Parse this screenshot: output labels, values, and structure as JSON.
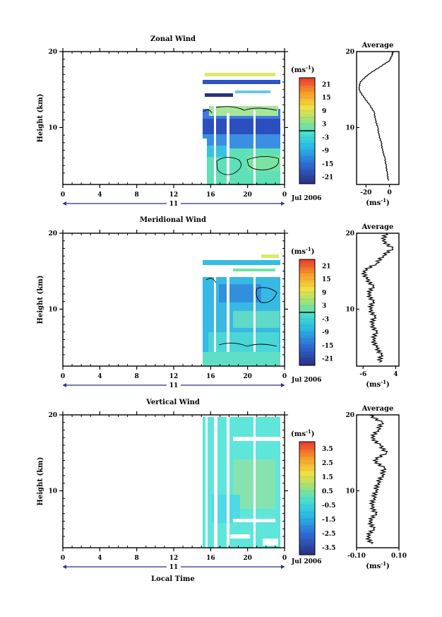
{
  "chart_data": [
    {
      "type": "heatmap",
      "title": "Zonal Wind",
      "ylabel": "Height (km)",
      "yticks": [
        "20",
        "10"
      ],
      "xticks": [
        "0",
        "4",
        "8",
        "12",
        "16",
        "20",
        "0"
      ],
      "xlim": [
        0,
        24
      ],
      "ylim": [
        2.5,
        20
      ],
      "day_label": "11",
      "month_label": "Jul 2006",
      "colorbar": {
        "unit": "(ms",
        "unit_exp": "-1",
        "unit_close": ")",
        "ticks": [
          "21",
          "15",
          "9",
          "3",
          "-3",
          "-9",
          "-15",
          "-21"
        ],
        "range": [
          -24,
          24
        ]
      },
      "average": {
        "title": "Average",
        "xticks": [
          "-20",
          "0"
        ],
        "xlim": [
          -28,
          8
        ],
        "xlabel": "(ms",
        "xlabel_exp": "-1",
        "xlabel_close": ")",
        "yticks": [
          "20",
          "10"
        ],
        "profile": [
          [
            3,
            -1
          ],
          [
            4,
            -2
          ],
          [
            5,
            -3
          ],
          [
            6,
            -4
          ],
          [
            7,
            -6
          ],
          [
            8,
            -7
          ],
          [
            9,
            -9
          ],
          [
            10,
            -10
          ],
          [
            11,
            -12
          ],
          [
            12,
            -13
          ],
          [
            13,
            -17
          ],
          [
            14,
            -22
          ],
          [
            15,
            -26
          ],
          [
            16,
            -25
          ],
          [
            17,
            -18
          ],
          [
            18,
            -8
          ],
          [
            18.8,
            0
          ],
          [
            19.5,
            2
          ],
          [
            20,
            3
          ]
        ]
      }
    },
    {
      "type": "heatmap",
      "title": "Meridional Wind",
      "ylabel": "Height (km)",
      "yticks": [
        "20",
        "10"
      ],
      "xticks": [
        "0",
        "4",
        "8",
        "12",
        "16",
        "20",
        "0"
      ],
      "xlim": [
        0,
        24
      ],
      "ylim": [
        2.5,
        20
      ],
      "day_label": "11",
      "month_label": "Jul 2006",
      "colorbar": {
        "unit": "(ms",
        "unit_exp": "-1",
        "unit_close": ")",
        "ticks": [
          "21",
          "15",
          "9",
          "3",
          "-3",
          "-9",
          "-15",
          "-21"
        ],
        "range": [
          -24,
          24
        ]
      },
      "average": {
        "title": "Average",
        "xticks": [
          "-6",
          "4"
        ],
        "xlim": [
          -8,
          5
        ],
        "xlabel": "(ms",
        "xlabel_exp": "-1",
        "xlabel_close": ")",
        "yticks": [
          "20",
          "10"
        ],
        "profile": [
          [
            3,
            -1
          ],
          [
            4,
            -0.5
          ],
          [
            5,
            -2
          ],
          [
            6,
            -3
          ],
          [
            7,
            -2
          ],
          [
            8,
            -3.5
          ],
          [
            9,
            -2.5
          ],
          [
            10,
            -4
          ],
          [
            11,
            -3
          ],
          [
            12,
            -4.5
          ],
          [
            13,
            -3
          ],
          [
            14,
            -5
          ],
          [
            15,
            -6
          ],
          [
            16,
            -2
          ],
          [
            17,
            0
          ],
          [
            18,
            3
          ],
          [
            19,
            0
          ],
          [
            20,
            1
          ]
        ]
      }
    },
    {
      "type": "heatmap",
      "title": "Vertical Wind",
      "ylabel": "Height (km)",
      "xlabel": "Local Time",
      "yticks": [
        "20",
        "10"
      ],
      "xticks": [
        "0",
        "4",
        "8",
        "12",
        "16",
        "20",
        "0"
      ],
      "xlim": [
        0,
        24
      ],
      "ylim": [
        2.5,
        20
      ],
      "day_label": "11",
      "month_label": "Jul 2006",
      "colorbar": {
        "unit": "(ms",
        "unit_exp": "-1",
        "unit_close": ")",
        "ticks": [
          "3.5",
          "2.5",
          "1.5",
          "0.5",
          "-0.5",
          "-1.5",
          "-2.5",
          "-3.5"
        ],
        "range": [
          -4,
          4
        ]
      },
      "average": {
        "title": "Average",
        "xticks": [
          "-0.10",
          "0.10"
        ],
        "xlim": [
          -0.1,
          0.1
        ],
        "xlabel": "(ms",
        "xlabel_exp": "-1",
        "xlabel_close": ")",
        "yticks": [
          "20",
          "10"
        ],
        "profile": [
          [
            3,
            -0.03
          ],
          [
            4,
            -0.05
          ],
          [
            5,
            -0.02
          ],
          [
            6,
            -0.04
          ],
          [
            7,
            -0.01
          ],
          [
            8,
            -0.03
          ],
          [
            9,
            -0.02
          ],
          [
            10,
            -0.01
          ],
          [
            11,
            0.0
          ],
          [
            12,
            0.02
          ],
          [
            13,
            0.03
          ],
          [
            14,
            -0.02
          ],
          [
            15,
            0.04
          ],
          [
            16,
            0.01
          ],
          [
            17,
            -0.03
          ],
          [
            18,
            0.0
          ],
          [
            19,
            0.02
          ],
          [
            20,
            -0.04
          ]
        ]
      }
    }
  ]
}
